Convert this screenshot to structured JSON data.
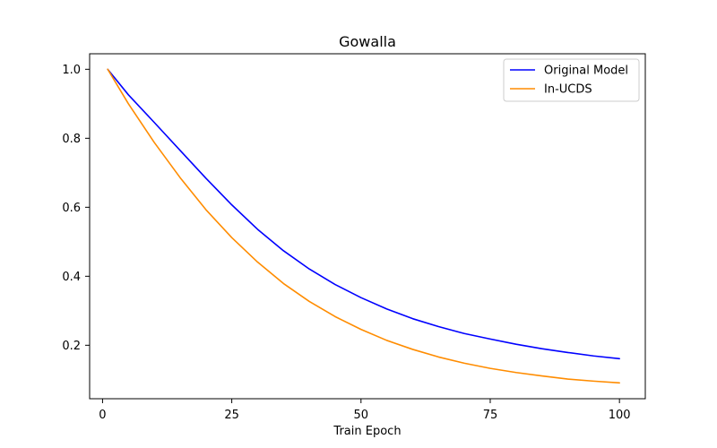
{
  "chart_data": {
    "type": "line",
    "title": "Gowalla",
    "xlabel": "Train Epoch",
    "ylabel": "",
    "xlim": [
      -2.5,
      105
    ],
    "ylim": [
      0.045,
      1.045
    ],
    "xticks": [
      0,
      25,
      50,
      75,
      100
    ],
    "yticks": [
      0.2,
      0.4,
      0.6,
      0.8,
      1.0
    ],
    "xtick_labels": [
      "0",
      "25",
      "50",
      "75",
      "100"
    ],
    "ytick_labels": [
      "0.2",
      "0.4",
      "0.6",
      "0.8",
      "1.0"
    ],
    "grid": false,
    "legend_position": "top-right",
    "series": [
      {
        "name": "Original Model",
        "color": "#0000ff",
        "x": [
          1,
          5,
          10,
          15,
          20,
          25,
          30,
          35,
          40,
          45,
          50,
          55,
          60,
          65,
          70,
          75,
          80,
          85,
          90,
          95,
          100
        ],
        "y": [
          1.0,
          0.926,
          0.846,
          0.765,
          0.684,
          0.607,
          0.536,
          0.474,
          0.421,
          0.376,
          0.338,
          0.305,
          0.277,
          0.254,
          0.234,
          0.218,
          0.203,
          0.19,
          0.179,
          0.169,
          0.161
        ]
      },
      {
        "name": "In-UCDS",
        "color": "#ff8c00",
        "x": [
          1,
          5,
          10,
          15,
          20,
          25,
          30,
          35,
          40,
          45,
          50,
          55,
          60,
          65,
          70,
          75,
          80,
          85,
          90,
          95,
          100
        ],
        "y": [
          1.0,
          0.9,
          0.788,
          0.686,
          0.593,
          0.512,
          0.441,
          0.379,
          0.327,
          0.283,
          0.246,
          0.214,
          0.188,
          0.166,
          0.148,
          0.133,
          0.121,
          0.111,
          0.102,
          0.096,
          0.091
        ]
      }
    ]
  }
}
